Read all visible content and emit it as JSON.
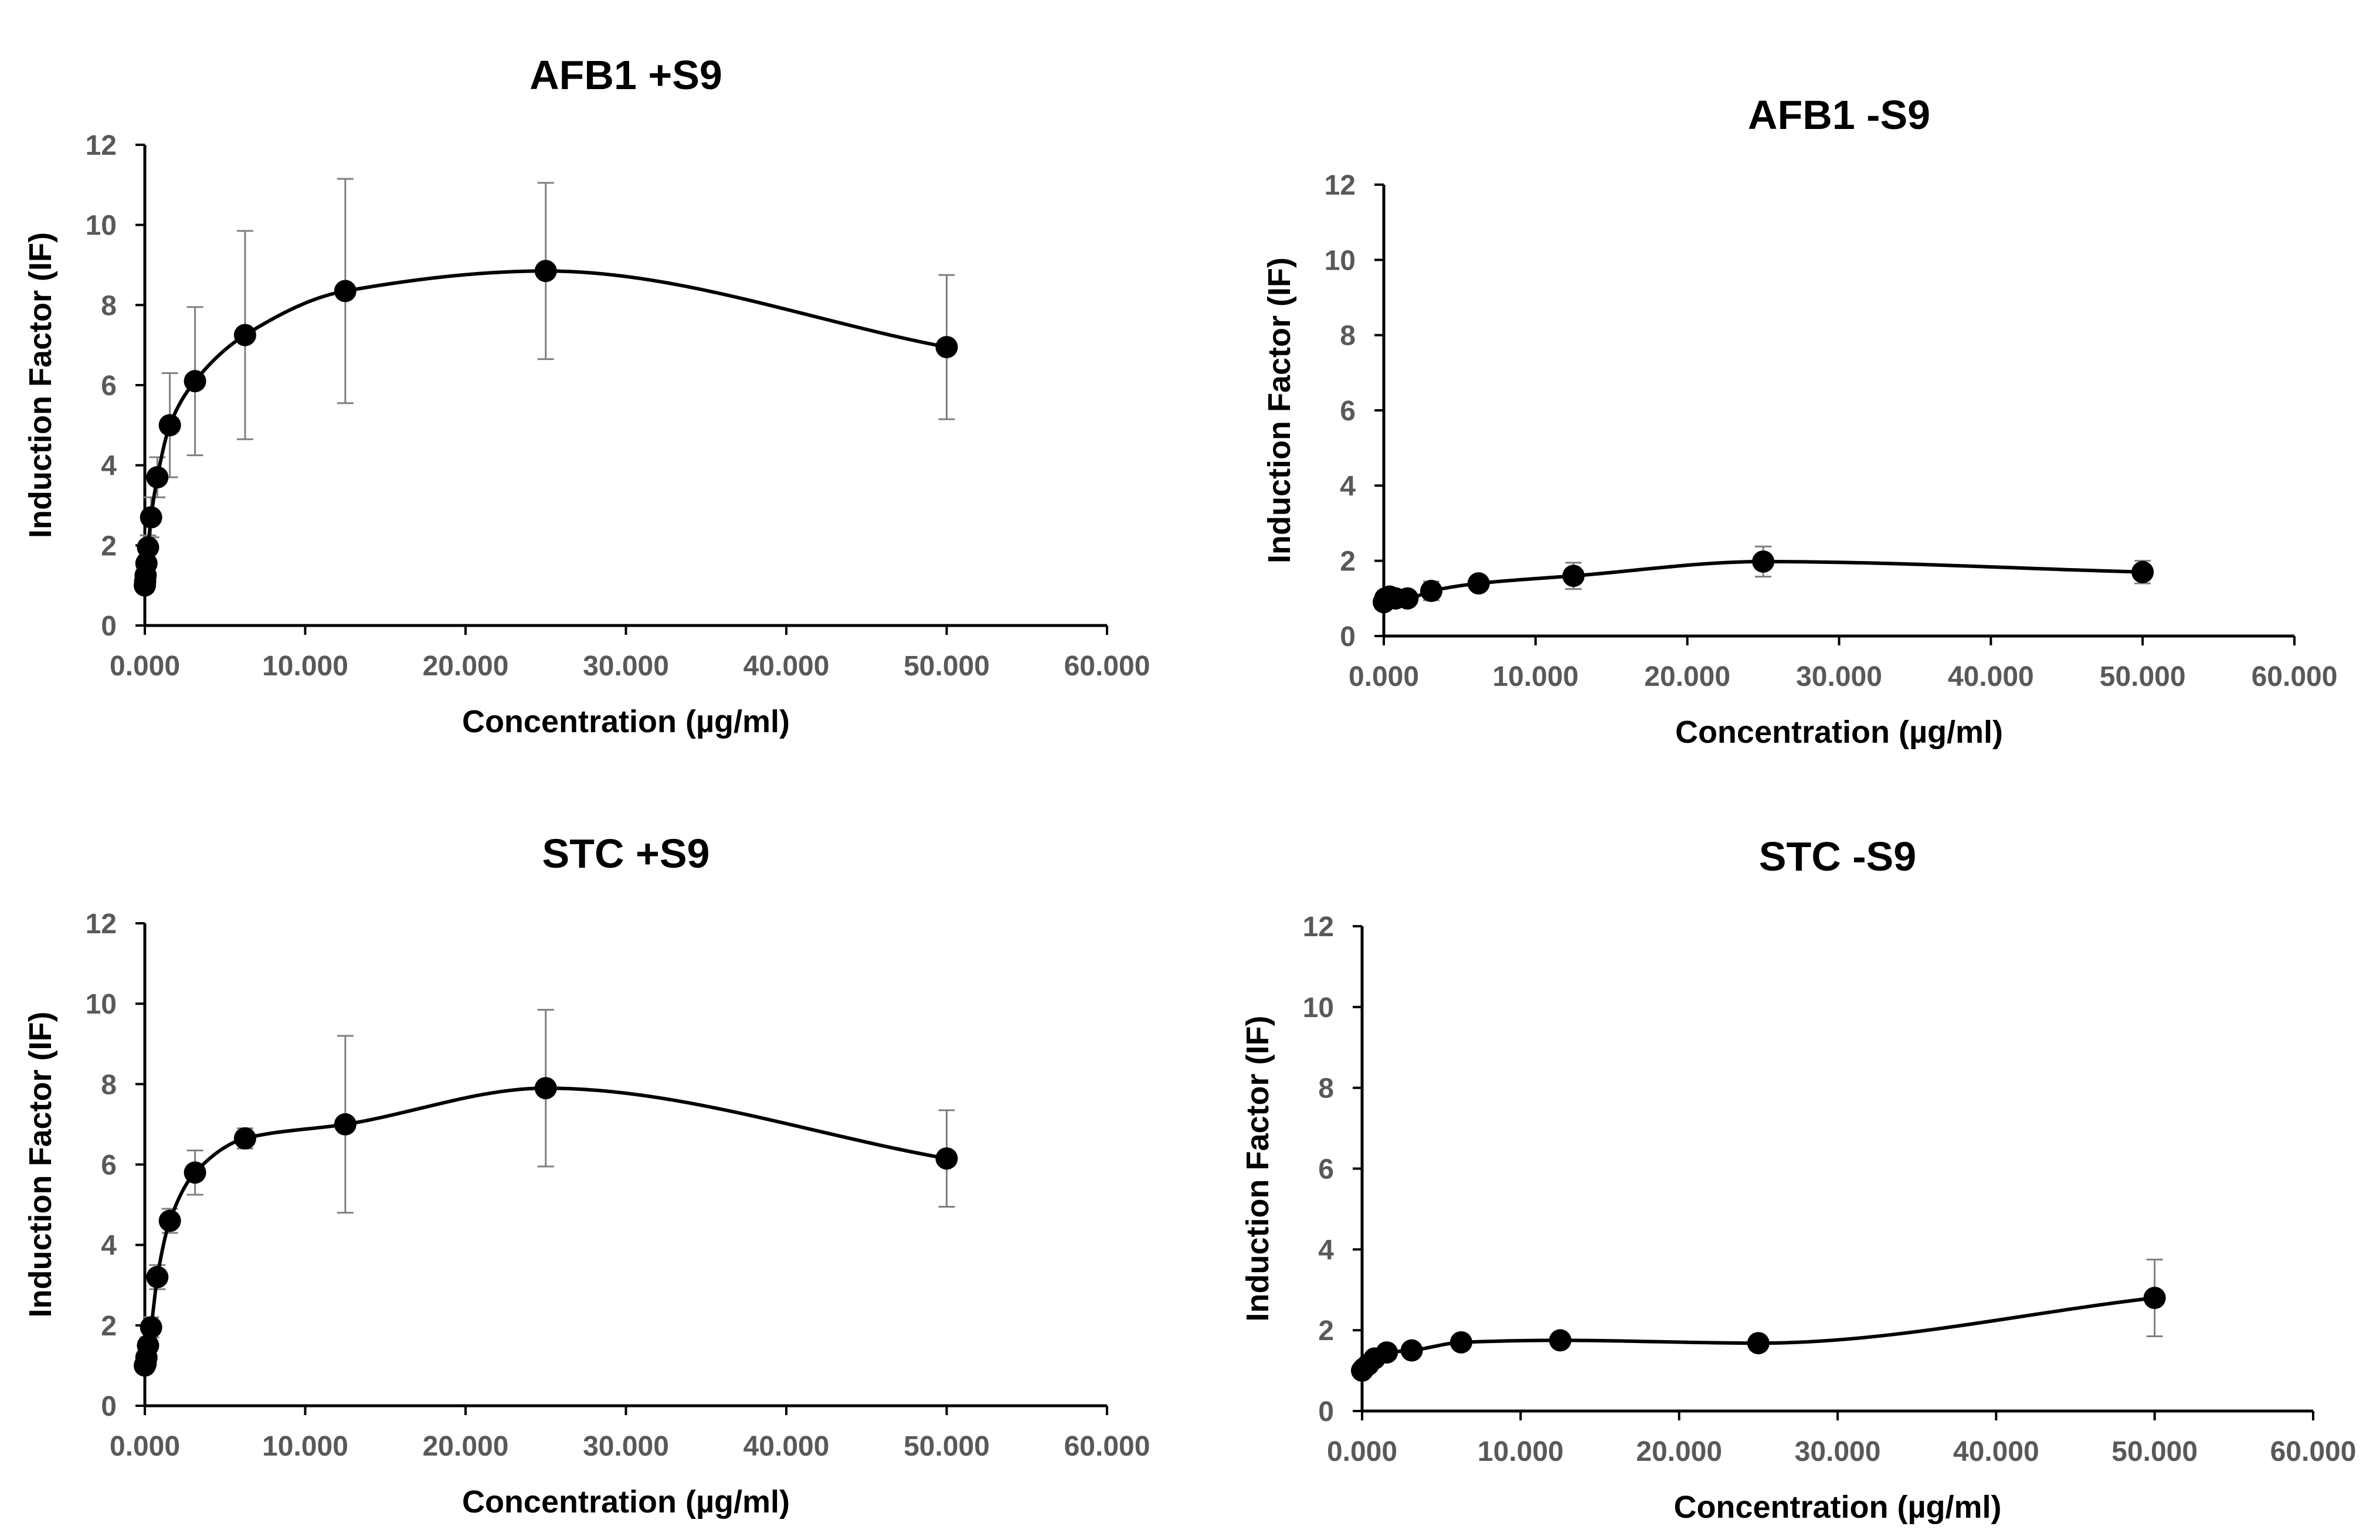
{
  "chart_data": [
    {
      "type": "scatter",
      "title": "AFB1 +S9",
      "xlabel": "Concentration (µg/ml)",
      "ylabel": "Induction Factor (IF)",
      "xlim": [
        0,
        60
      ],
      "ylim": [
        0,
        12
      ],
      "xticks": [
        "0.000",
        "10.000",
        "20.000",
        "30.000",
        "40.000",
        "50.000",
        "60.000"
      ],
      "yticks": [
        "0",
        "2",
        "4",
        "6",
        "8",
        "10",
        "12"
      ],
      "grid": false,
      "series": [
        {
          "name": "AFB1 +S9",
          "x": [
            0,
            0.02,
            0.05,
            0.1,
            0.2,
            0.39,
            0.78,
            1.56,
            3.13,
            6.25,
            12.5,
            25,
            50
          ],
          "y": [
            1.0,
            1.1,
            1.25,
            1.55,
            1.95,
            2.7,
            3.7,
            5.0,
            6.1,
            7.25,
            8.35,
            8.85,
            6.95
          ],
          "err": [
            0,
            0,
            0.1,
            0.2,
            0.3,
            0.5,
            0.5,
            1.3,
            1.85,
            2.6,
            2.8,
            2.2,
            1.8
          ]
        }
      ]
    },
    {
      "type": "scatter",
      "title": "AFB1 -S9",
      "xlabel": "Concentration (µg/ml)",
      "ylabel": "Induction Factor (IF)",
      "xlim": [
        0,
        60
      ],
      "ylim": [
        0,
        12
      ],
      "xticks": [
        "0.000",
        "10.000",
        "20.000",
        "30.000",
        "40.000",
        "50.000",
        "60.000"
      ],
      "yticks": [
        "0",
        "2",
        "4",
        "6",
        "8",
        "10",
        "12"
      ],
      "grid": false,
      "series": [
        {
          "name": "AFB1 -S9",
          "x": [
            0,
            0.1,
            0.39,
            0.78,
            1.56,
            3.13,
            6.25,
            12.5,
            25,
            50
          ],
          "y": [
            0.9,
            1.0,
            1.05,
            1.0,
            1.0,
            1.2,
            1.4,
            1.6,
            1.98,
            1.7
          ],
          "err": [
            0.1,
            0.1,
            0.1,
            0.1,
            0.1,
            0.25,
            0.15,
            0.35,
            0.4,
            0.3
          ]
        }
      ]
    },
    {
      "type": "scatter",
      "title": "STC +S9",
      "xlabel": "Concentration (µg/ml)",
      "ylabel": "Induction Factor (IF)",
      "xlim": [
        0,
        60
      ],
      "ylim": [
        0,
        12
      ],
      "xticks": [
        "0.000",
        "10.000",
        "20.000",
        "30.000",
        "40.000",
        "50.000",
        "60.000"
      ],
      "yticks": [
        "0",
        "2",
        "4",
        "6",
        "8",
        "10",
        "12"
      ],
      "grid": false,
      "series": [
        {
          "name": "STC +S9",
          "x": [
            0,
            0.05,
            0.1,
            0.2,
            0.39,
            0.78,
            1.56,
            3.13,
            6.25,
            12.5,
            25,
            50
          ],
          "y": [
            1.0,
            1.05,
            1.2,
            1.5,
            1.95,
            3.2,
            4.6,
            5.8,
            6.65,
            7.0,
            7.9,
            6.15
          ],
          "err": [
            0,
            0,
            0.1,
            0.2,
            0.25,
            0.3,
            0.3,
            0.55,
            0.25,
            2.2,
            1.95,
            1.2
          ]
        }
      ]
    },
    {
      "type": "scatter",
      "title": "STC -S9",
      "xlabel": "Concentration (µg/ml)",
      "ylabel": "Induction Factor (IF)",
      "xlim": [
        0,
        60
      ],
      "ylim": [
        0,
        12
      ],
      "xticks": [
        "0.000",
        "10.000",
        "20.000",
        "30.000",
        "40.000",
        "50.000",
        "60.000"
      ],
      "yticks": [
        "0",
        "2",
        "4",
        "6",
        "8",
        "10",
        "12"
      ],
      "grid": false,
      "series": [
        {
          "name": "STC -S9",
          "x": [
            0,
            0.1,
            0.39,
            0.78,
            1.56,
            3.13,
            6.25,
            12.5,
            25,
            50
          ],
          "y": [
            1.0,
            1.05,
            1.15,
            1.3,
            1.45,
            1.5,
            1.7,
            1.75,
            1.68,
            2.8
          ],
          "err": [
            0.1,
            0.1,
            0.1,
            0.1,
            0.1,
            0.15,
            0.1,
            0.1,
            0.1,
            0.95
          ]
        }
      ]
    }
  ]
}
